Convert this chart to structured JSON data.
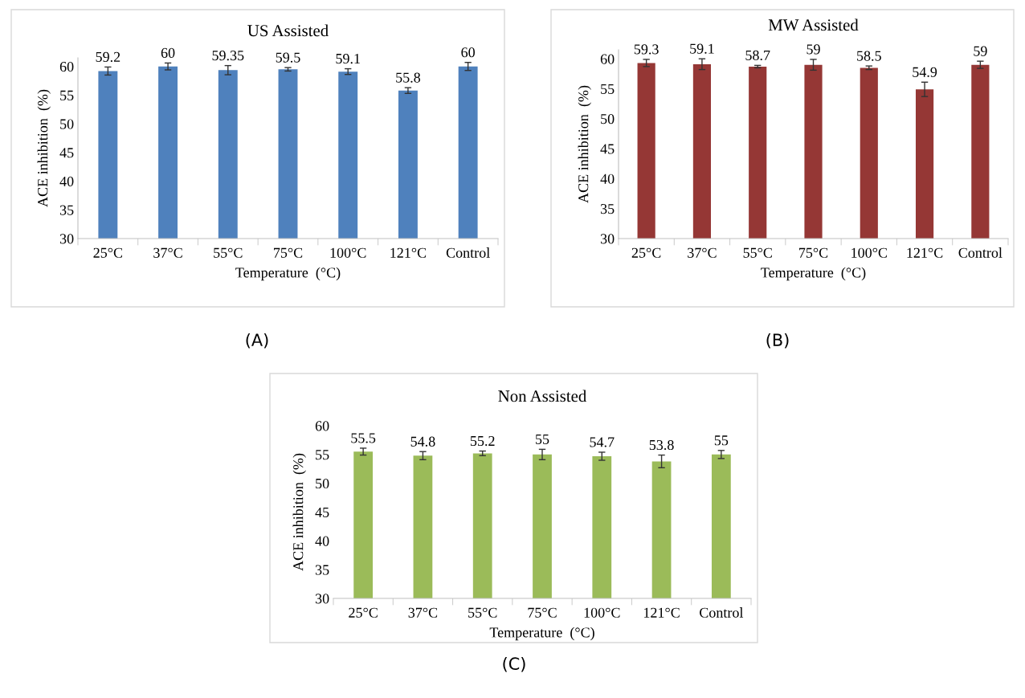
{
  "chart_data": [
    {
      "type": "bar",
      "title": "US Assisted",
      "xlabel": "Temperature  (°C)",
      "ylabel": "ACE inhibition  (%)",
      "categories": [
        "25°C",
        "37°C",
        "55°C",
        "75°C",
        "100°C",
        "121°C",
        "Control"
      ],
      "values": [
        59.2,
        60,
        59.35,
        59.5,
        59.1,
        55.8,
        60
      ],
      "errors": [
        0.7,
        0.6,
        0.8,
        0.3,
        0.5,
        0.5,
        0.7
      ],
      "color": "#4f81bd",
      "ylim": [
        30,
        61.5
      ],
      "yticks": [
        30,
        35,
        40,
        45,
        50,
        55,
        60
      ],
      "data_labels": true,
      "grid": false,
      "annotations": [
        "(A)"
      ]
    },
    {
      "type": "bar",
      "title": "MW Assisted",
      "xlabel": "Temperature  (°C)",
      "ylabel": "ACE inhibition  (%)",
      "categories": [
        "25°C",
        "37°C",
        "55°C",
        "75°C",
        "100°C",
        "121°C",
        "Control"
      ],
      "values": [
        59.3,
        59.1,
        58.7,
        59,
        58.5,
        54.9,
        59
      ],
      "errors": [
        0.6,
        0.9,
        0.2,
        0.9,
        0.3,
        1.2,
        0.6
      ],
      "color": "#953735",
      "ylim": [
        30,
        61.5
      ],
      "yticks": [
        30,
        35,
        40,
        45,
        50,
        55,
        60
      ],
      "data_labels": true,
      "grid": false,
      "annotations": [
        "(B)"
      ]
    },
    {
      "type": "bar",
      "title": "Non Assisted",
      "xlabel": "Temperature  (°C)",
      "ylabel": "ACE inhibition  (%)",
      "categories": [
        "25°C",
        "37°C",
        "55°C",
        "75°C",
        "100°C",
        "121°C",
        "Control"
      ],
      "values": [
        55.5,
        54.8,
        55.2,
        55,
        54.7,
        53.8,
        55
      ],
      "errors": [
        0.6,
        0.7,
        0.4,
        0.9,
        0.7,
        1.1,
        0.7
      ],
      "color": "#9bbb59",
      "ylim": [
        30,
        60
      ],
      "yticks": [
        30,
        35,
        40,
        45,
        50,
        55,
        60
      ],
      "data_labels": true,
      "grid": false,
      "annotations": [
        "(C)"
      ]
    }
  ]
}
